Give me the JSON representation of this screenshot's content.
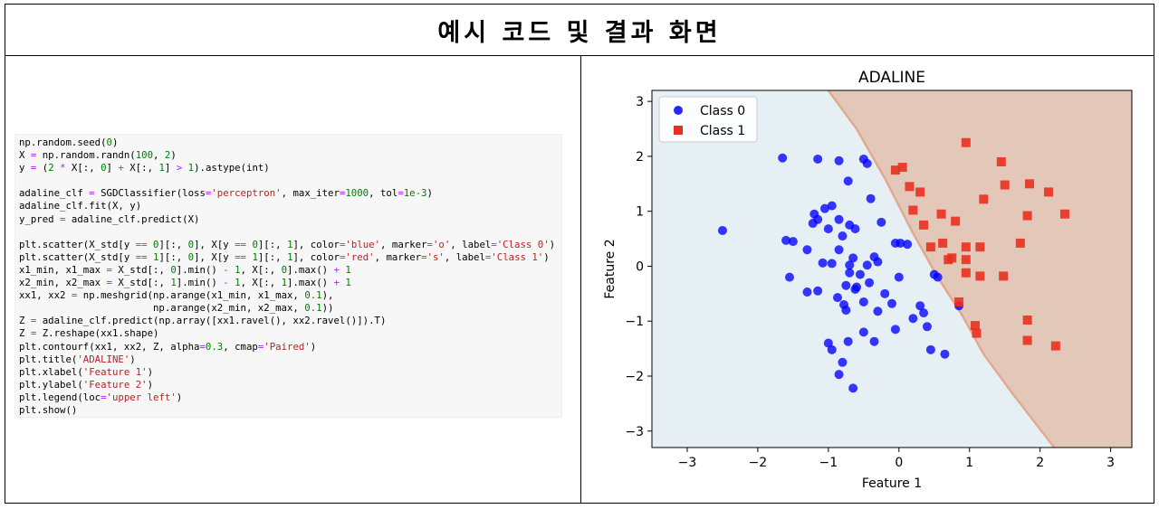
{
  "page": {
    "title": "예시 코드 및 결과 화면"
  },
  "code": {
    "lines": [
      "np.random.seed(0)",
      "X = np.random.randn(100, 2)",
      "y = (2 * X[:, 0] + X[:, 1] > 1).astype(int)",
      "",
      "adaline_clf = SGDClassifier(loss='perceptron', max_iter=1000, tol=1e-3)",
      "adaline_clf.fit(X, y)",
      "y_pred = adaline_clf.predict(X)",
      "",
      "plt.scatter(X_std[y == 0][:, 0], X[y == 0][:, 1], color='blue', marker='o', label='Class 0')",
      "plt.scatter(X_std[y == 1][:, 0], X[y == 1][:, 1], color='red', marker='s', label='Class 1')",
      "x1_min, x1_max = X_std[:, 0].min() - 1, X[:, 0].max() + 1",
      "x2_min, x2_max = X_std[:, 1].min() - 1, X[:, 1].max() + 1",
      "xx1, xx2 = np.meshgrid(np.arange(x1_min, x1_max, 0.1),",
      "                       np.arange(x2_min, x2_max, 0.1))",
      "Z = adaline_clf.predict(np.array([xx1.ravel(), xx2.ravel()]).T)",
      "Z = Z.reshape(xx1.shape)",
      "plt.contourf(xx1, xx2, Z, alpha=0.3, cmap='Paired')",
      "plt.title('ADALINE')",
      "plt.xlabel('Feature 1')",
      "plt.ylabel('Feature 2')",
      "plt.legend(loc='upper left')",
      "plt.show()"
    ]
  },
  "chart_data": {
    "type": "scatter",
    "title": "ADALINE",
    "xlabel": "Feature 1",
    "ylabel": "Feature 2",
    "xlim": [
      -3.5,
      3.3
    ],
    "ylim": [
      -3.3,
      3.2
    ],
    "xticks": [
      -3,
      -2,
      -1,
      0,
      1,
      2,
      3
    ],
    "yticks": [
      -3,
      -2,
      -1,
      0,
      1,
      2,
      3
    ],
    "legend_position": "upper-left",
    "grid": false,
    "background_regions": {
      "class0_color": "#e6eff4",
      "class1_color": "#e3c8b9",
      "boundary_color": "#e2a98f",
      "boundary": [
        [
          -1.0,
          3.2
        ],
        [
          -0.6,
          2.5
        ],
        [
          -0.2,
          1.6
        ],
        [
          0.2,
          0.6
        ],
        [
          0.55,
          -0.2
        ],
        [
          0.9,
          -0.9
        ],
        [
          1.2,
          -1.6
        ],
        [
          1.6,
          -2.3
        ],
        [
          1.9,
          -2.8
        ],
        [
          2.2,
          -3.3
        ]
      ]
    },
    "series": [
      {
        "name": "Class 0",
        "color": "#0000ff",
        "marker": "o",
        "points": [
          [
            -2.5,
            0.65
          ],
          [
            -1.65,
            1.97
          ],
          [
            -1.15,
            1.95
          ],
          [
            -0.85,
            1.92
          ],
          [
            -0.5,
            1.95
          ],
          [
            -0.45,
            1.87
          ],
          [
            -0.72,
            1.55
          ],
          [
            -0.4,
            1.23
          ],
          [
            -1.05,
            1.05
          ],
          [
            -0.95,
            1.1
          ],
          [
            -1.2,
            0.95
          ],
          [
            -1.15,
            0.85
          ],
          [
            -1.22,
            0.78
          ],
          [
            -0.85,
            0.85
          ],
          [
            -0.7,
            0.75
          ],
          [
            -0.25,
            0.8
          ],
          [
            -1.0,
            0.68
          ],
          [
            -0.62,
            0.68
          ],
          [
            -1.6,
            0.47
          ],
          [
            -1.5,
            0.45
          ],
          [
            -0.8,
            0.55
          ],
          [
            -0.05,
            0.42
          ],
          [
            0.02,
            0.42
          ],
          [
            0.12,
            0.4
          ],
          [
            -0.85,
            0.3
          ],
          [
            -1.3,
            0.3
          ],
          [
            -0.65,
            0.15
          ],
          [
            -0.35,
            0.17
          ],
          [
            -0.3,
            0.08
          ],
          [
            -0.7,
            0.02
          ],
          [
            -1.08,
            0.06
          ],
          [
            -0.45,
            0.02
          ],
          [
            -0.95,
            0.05
          ],
          [
            -0.55,
            -0.15
          ],
          [
            -0.7,
            -0.12
          ],
          [
            -1.55,
            -0.2
          ],
          [
            -0.75,
            -0.35
          ],
          [
            -0.6,
            -0.38
          ],
          [
            -0.42,
            -0.3
          ],
          [
            -0.62,
            -0.42
          ],
          [
            -0.2,
            -0.5
          ],
          [
            -1.3,
            -0.47
          ],
          [
            -1.15,
            -0.45
          ],
          [
            -0.87,
            -0.57
          ],
          [
            -0.78,
            -0.7
          ],
          [
            -0.5,
            -0.65
          ],
          [
            -0.75,
            -0.8
          ],
          [
            -0.3,
            -0.82
          ],
          [
            -0.1,
            -0.68
          ],
          [
            0.0,
            -0.2
          ],
          [
            0.55,
            -0.2
          ],
          [
            0.5,
            -0.15
          ],
          [
            0.85,
            -0.72
          ],
          [
            0.3,
            -0.72
          ],
          [
            0.35,
            -0.85
          ],
          [
            0.4,
            -1.1
          ],
          [
            0.2,
            -0.95
          ],
          [
            -0.05,
            -1.15
          ],
          [
            -0.5,
            -1.2
          ],
          [
            -0.35,
            -1.37
          ],
          [
            -1.0,
            -1.4
          ],
          [
            -0.95,
            -1.52
          ],
          [
            -0.72,
            -1.37
          ],
          [
            -0.8,
            -1.75
          ],
          [
            -0.85,
            -1.97
          ],
          [
            -0.65,
            -2.22
          ],
          [
            0.45,
            -1.52
          ],
          [
            0.65,
            -1.6
          ]
        ]
      },
      {
        "name": "Class 1",
        "color": "#e8301f",
        "marker": "s",
        "points": [
          [
            0.95,
            2.25
          ],
          [
            1.45,
            1.9
          ],
          [
            1.85,
            1.5
          ],
          [
            2.12,
            1.35
          ],
          [
            1.5,
            1.48
          ],
          [
            1.2,
            1.22
          ],
          [
            -0.05,
            1.75
          ],
          [
            0.05,
            1.8
          ],
          [
            0.15,
            1.45
          ],
          [
            0.3,
            1.35
          ],
          [
            0.2,
            1.02
          ],
          [
            0.6,
            0.95
          ],
          [
            0.8,
            0.82
          ],
          [
            0.35,
            0.75
          ],
          [
            0.45,
            0.35
          ],
          [
            0.62,
            0.42
          ],
          [
            0.95,
            0.35
          ],
          [
            1.15,
            0.35
          ],
          [
            1.72,
            0.42
          ],
          [
            1.82,
            0.92
          ],
          [
            2.35,
            0.95
          ],
          [
            0.75,
            0.15
          ],
          [
            0.7,
            0.12
          ],
          [
            0.95,
            0.12
          ],
          [
            0.95,
            -0.12
          ],
          [
            1.15,
            -0.18
          ],
          [
            1.48,
            -0.18
          ],
          [
            0.85,
            -0.65
          ],
          [
            1.08,
            -1.08
          ],
          [
            1.1,
            -1.22
          ],
          [
            1.82,
            -0.98
          ],
          [
            1.82,
            -1.35
          ],
          [
            2.22,
            -1.45
          ]
        ]
      }
    ]
  }
}
